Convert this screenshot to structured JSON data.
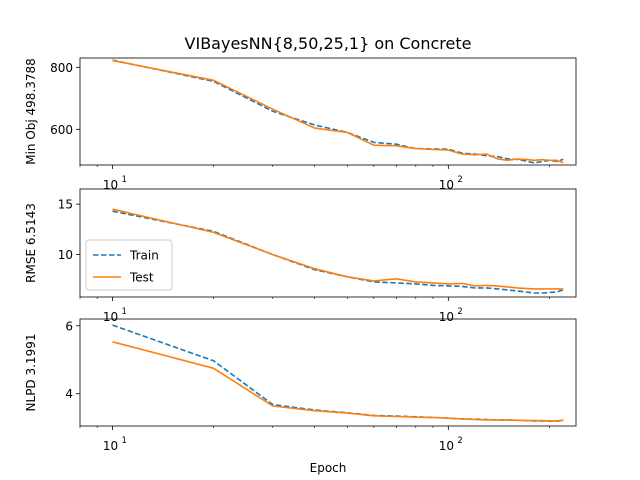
{
  "figure": {
    "title": "VIBayesNN{8,50,25,1} on Concrete",
    "xlabel": "Epoch"
  },
  "legend": {
    "items": [
      {
        "label": "Train",
        "color": "#1f77b4",
        "style": "dashed"
      },
      {
        "label": "Test",
        "color": "#ff7f0e",
        "style": "solid"
      }
    ]
  },
  "chart_data": [
    {
      "type": "line",
      "ylabel": "Min Obj 498.3788",
      "xscale": "log",
      "xlim": [
        8,
        240
      ],
      "ylim": [
        485,
        830
      ],
      "xticks": [
        {
          "value": 10,
          "label": "10",
          "exp": "1"
        },
        {
          "value": 100,
          "label": "10",
          "exp": "2"
        }
      ],
      "yticks": [
        {
          "value": 600,
          "label": "600"
        },
        {
          "value": 800,
          "label": "800"
        }
      ],
      "x": [
        10,
        20,
        30,
        40,
        50,
        60,
        70,
        80,
        90,
        100,
        110,
        120,
        130,
        140,
        150,
        160,
        170,
        180,
        190,
        200,
        210,
        220
      ],
      "series": [
        {
          "name": "Train",
          "color": "#1f77b4",
          "style": "dashed",
          "values": [
            823,
            755,
            658,
            614,
            590,
            558,
            552,
            538,
            537,
            536,
            523,
            520,
            515,
            512,
            505,
            503,
            498,
            492,
            496,
            500,
            497,
            503
          ]
        },
        {
          "name": "Test",
          "color": "#ff7f0e",
          "style": "solid",
          "values": [
            822,
            758,
            665,
            604,
            590,
            549,
            547,
            538,
            535,
            533,
            520,
            518,
            520,
            505,
            500,
            504,
            503,
            500,
            502,
            500,
            500,
            492
          ]
        }
      ]
    },
    {
      "type": "line",
      "ylabel": "RMSE 6.5143",
      "xscale": "log",
      "xlim": [
        8,
        240
      ],
      "ylim": [
        5.8,
        16.5
      ],
      "xticks": [
        {
          "value": 10,
          "label": "10",
          "exp": "1"
        },
        {
          "value": 100,
          "label": "10",
          "exp": "2"
        }
      ],
      "yticks": [
        {
          "value": 10,
          "label": "10"
        },
        {
          "value": 15,
          "label": "15"
        }
      ],
      "legend_position": "center-left",
      "x": [
        10,
        20,
        30,
        40,
        50,
        60,
        70,
        80,
        90,
        100,
        110,
        120,
        130,
        140,
        150,
        160,
        170,
        180,
        190,
        200,
        210,
        220
      ],
      "series": [
        {
          "name": "Train",
          "color": "#1f77b4",
          "style": "dashed",
          "values": [
            14.3,
            12.3,
            10.0,
            8.5,
            7.8,
            7.3,
            7.2,
            7.1,
            6.95,
            6.9,
            6.85,
            6.7,
            6.7,
            6.6,
            6.5,
            6.4,
            6.3,
            6.2,
            6.2,
            6.25,
            6.3,
            6.5
          ]
        },
        {
          "name": "Test",
          "color": "#ff7f0e",
          "style": "solid",
          "values": [
            14.5,
            12.2,
            10.0,
            8.6,
            7.8,
            7.4,
            7.6,
            7.3,
            7.2,
            7.1,
            7.15,
            6.9,
            6.95,
            6.9,
            6.8,
            6.7,
            6.65,
            6.6,
            6.6,
            6.6,
            6.6,
            6.6
          ]
        }
      ]
    },
    {
      "type": "line",
      "ylabel": "NLPD 3.1991",
      "xscale": "log",
      "xlim": [
        8,
        240
      ],
      "ylim": [
        3.05,
        6.2
      ],
      "xticks": [
        {
          "value": 10,
          "label": "10",
          "exp": "1"
        },
        {
          "value": 100,
          "label": "10",
          "exp": "2"
        }
      ],
      "yticks": [
        {
          "value": 4,
          "label": "4"
        },
        {
          "value": 6,
          "label": "6"
        }
      ],
      "x": [
        10,
        20,
        30,
        40,
        50,
        60,
        70,
        80,
        90,
        100,
        110,
        120,
        130,
        140,
        150,
        160,
        170,
        180,
        190,
        200,
        210,
        220
      ],
      "series": [
        {
          "name": "Train",
          "color": "#1f77b4",
          "style": "dashed",
          "values": [
            6.02,
            4.97,
            3.68,
            3.52,
            3.44,
            3.36,
            3.34,
            3.32,
            3.3,
            3.28,
            3.26,
            3.25,
            3.24,
            3.23,
            3.23,
            3.22,
            3.21,
            3.2,
            3.2,
            3.19,
            3.19,
            3.21
          ]
        },
        {
          "name": "Test",
          "color": "#ff7f0e",
          "style": "solid",
          "values": [
            5.53,
            4.75,
            3.64,
            3.5,
            3.43,
            3.35,
            3.33,
            3.31,
            3.3,
            3.28,
            3.26,
            3.24,
            3.23,
            3.23,
            3.22,
            3.22,
            3.21,
            3.21,
            3.21,
            3.2,
            3.2,
            3.22
          ]
        }
      ]
    }
  ]
}
